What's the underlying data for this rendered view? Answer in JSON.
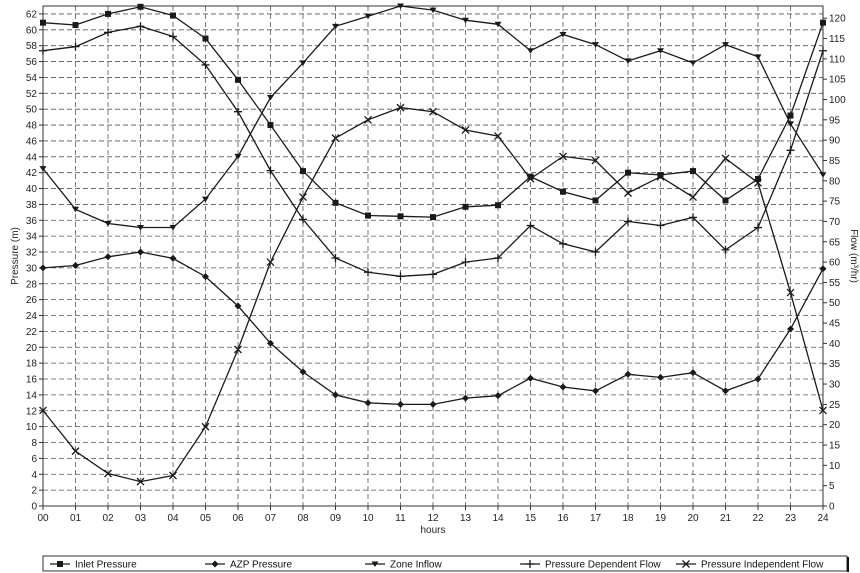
{
  "chart_data": {
    "type": "line",
    "xlabel": "hours",
    "ylabel_left": "Pressure (m)",
    "ylabel_right": "Flow (m³/hr)",
    "ylim_left": [
      0,
      63
    ],
    "ylim_right": [
      0,
      123
    ],
    "yticks_left": [
      0,
      2,
      4,
      6,
      8,
      10,
      12,
      14,
      16,
      18,
      20,
      22,
      24,
      26,
      28,
      30,
      32,
      34,
      36,
      38,
      40,
      42,
      44,
      46,
      48,
      50,
      52,
      54,
      56,
      58,
      60,
      62
    ],
    "yticks_right": [
      0,
      5,
      10,
      15,
      20,
      25,
      30,
      35,
      40,
      45,
      50,
      55,
      60,
      65,
      70,
      75,
      80,
      85,
      90,
      95,
      100,
      105,
      110,
      115,
      120
    ],
    "x": [
      "00",
      "01",
      "02",
      "03",
      "04",
      "05",
      "06",
      "07",
      "08",
      "09",
      "10",
      "11",
      "12",
      "13",
      "14",
      "15",
      "16",
      "17",
      "18",
      "19",
      "20",
      "21",
      "22",
      "23",
      "24"
    ],
    "grid": true,
    "legend_position": "bottom",
    "series": [
      {
        "name": "Inlet Pressure",
        "axis": "left",
        "marker": "square",
        "values": [
          60.9,
          60.6,
          62.0,
          62.9,
          61.8,
          58.9,
          53.7,
          48.0,
          42.2,
          38.2,
          36.6,
          36.5,
          36.4,
          37.7,
          37.9,
          41.5,
          39.6,
          38.5,
          42.0,
          41.7,
          42.2,
          38.5,
          41.2,
          49.2,
          60.9
        ]
      },
      {
        "name": "AZP Pressure",
        "axis": "left",
        "marker": "diamond",
        "values": [
          30.0,
          30.3,
          31.4,
          32.0,
          31.2,
          28.9,
          25.2,
          20.5,
          16.9,
          14.0,
          13.0,
          12.8,
          12.8,
          13.6,
          13.9,
          16.1,
          15.0,
          14.5,
          16.6,
          16.2,
          16.8,
          14.5,
          16.0,
          22.3,
          29.9
        ]
      },
      {
        "name": "Zone Inflow",
        "axis": "right",
        "marker": "triangle",
        "values": [
          83,
          73,
          69.5,
          68.5,
          68.5,
          75.5,
          86,
          100.5,
          109,
          118,
          120.5,
          123,
          122,
          119.5,
          118.5,
          112,
          116,
          113.5,
          109.5,
          112,
          109,
          113.5,
          110.5,
          94,
          81.5
        ]
      },
      {
        "name": "Pressure Dependent Flow",
        "axis": "right",
        "marker": "plus",
        "values": [
          112,
          113,
          116.5,
          118,
          115.5,
          108.5,
          97,
          82.5,
          70.5,
          61,
          57.5,
          56.5,
          57,
          60,
          61,
          69,
          64.5,
          62.5,
          70,
          69,
          71,
          63,
          68.5,
          87.5,
          112
        ]
      },
      {
        "name": "Pressure Independent Flow",
        "axis": "right",
        "marker": "cross",
        "values": [
          23.5,
          13.5,
          8,
          6,
          7.5,
          19.5,
          38.5,
          60,
          76,
          90.5,
          95,
          98,
          97,
          92.5,
          91,
          80.5,
          86,
          85,
          77,
          81,
          76,
          85.5,
          79.5,
          52.5,
          23.5
        ]
      }
    ]
  },
  "legend": [
    {
      "label": "Inlet Pressure",
      "marker": "square"
    },
    {
      "label": "AZP Pressure",
      "marker": "diamond"
    },
    {
      "label": "Zone Inflow",
      "marker": "triangle"
    },
    {
      "label": "Pressure Dependent Flow",
      "marker": "plus"
    },
    {
      "label": "Pressure Independent Flow",
      "marker": "cross"
    }
  ],
  "colors": {
    "line": "#1a1a1a",
    "grid": "#555555",
    "background": "#ffffff"
  }
}
